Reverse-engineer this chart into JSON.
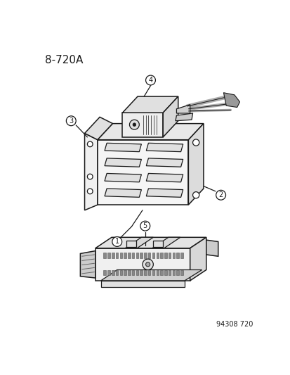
{
  "title": "8-720A",
  "footer": "94308 720",
  "bg": "#ffffff",
  "lc": "#1a1a1a",
  "figsize": [
    4.14,
    5.33
  ],
  "dpi": 100,
  "labels": [
    "1",
    "2",
    "3",
    "4",
    "5"
  ]
}
